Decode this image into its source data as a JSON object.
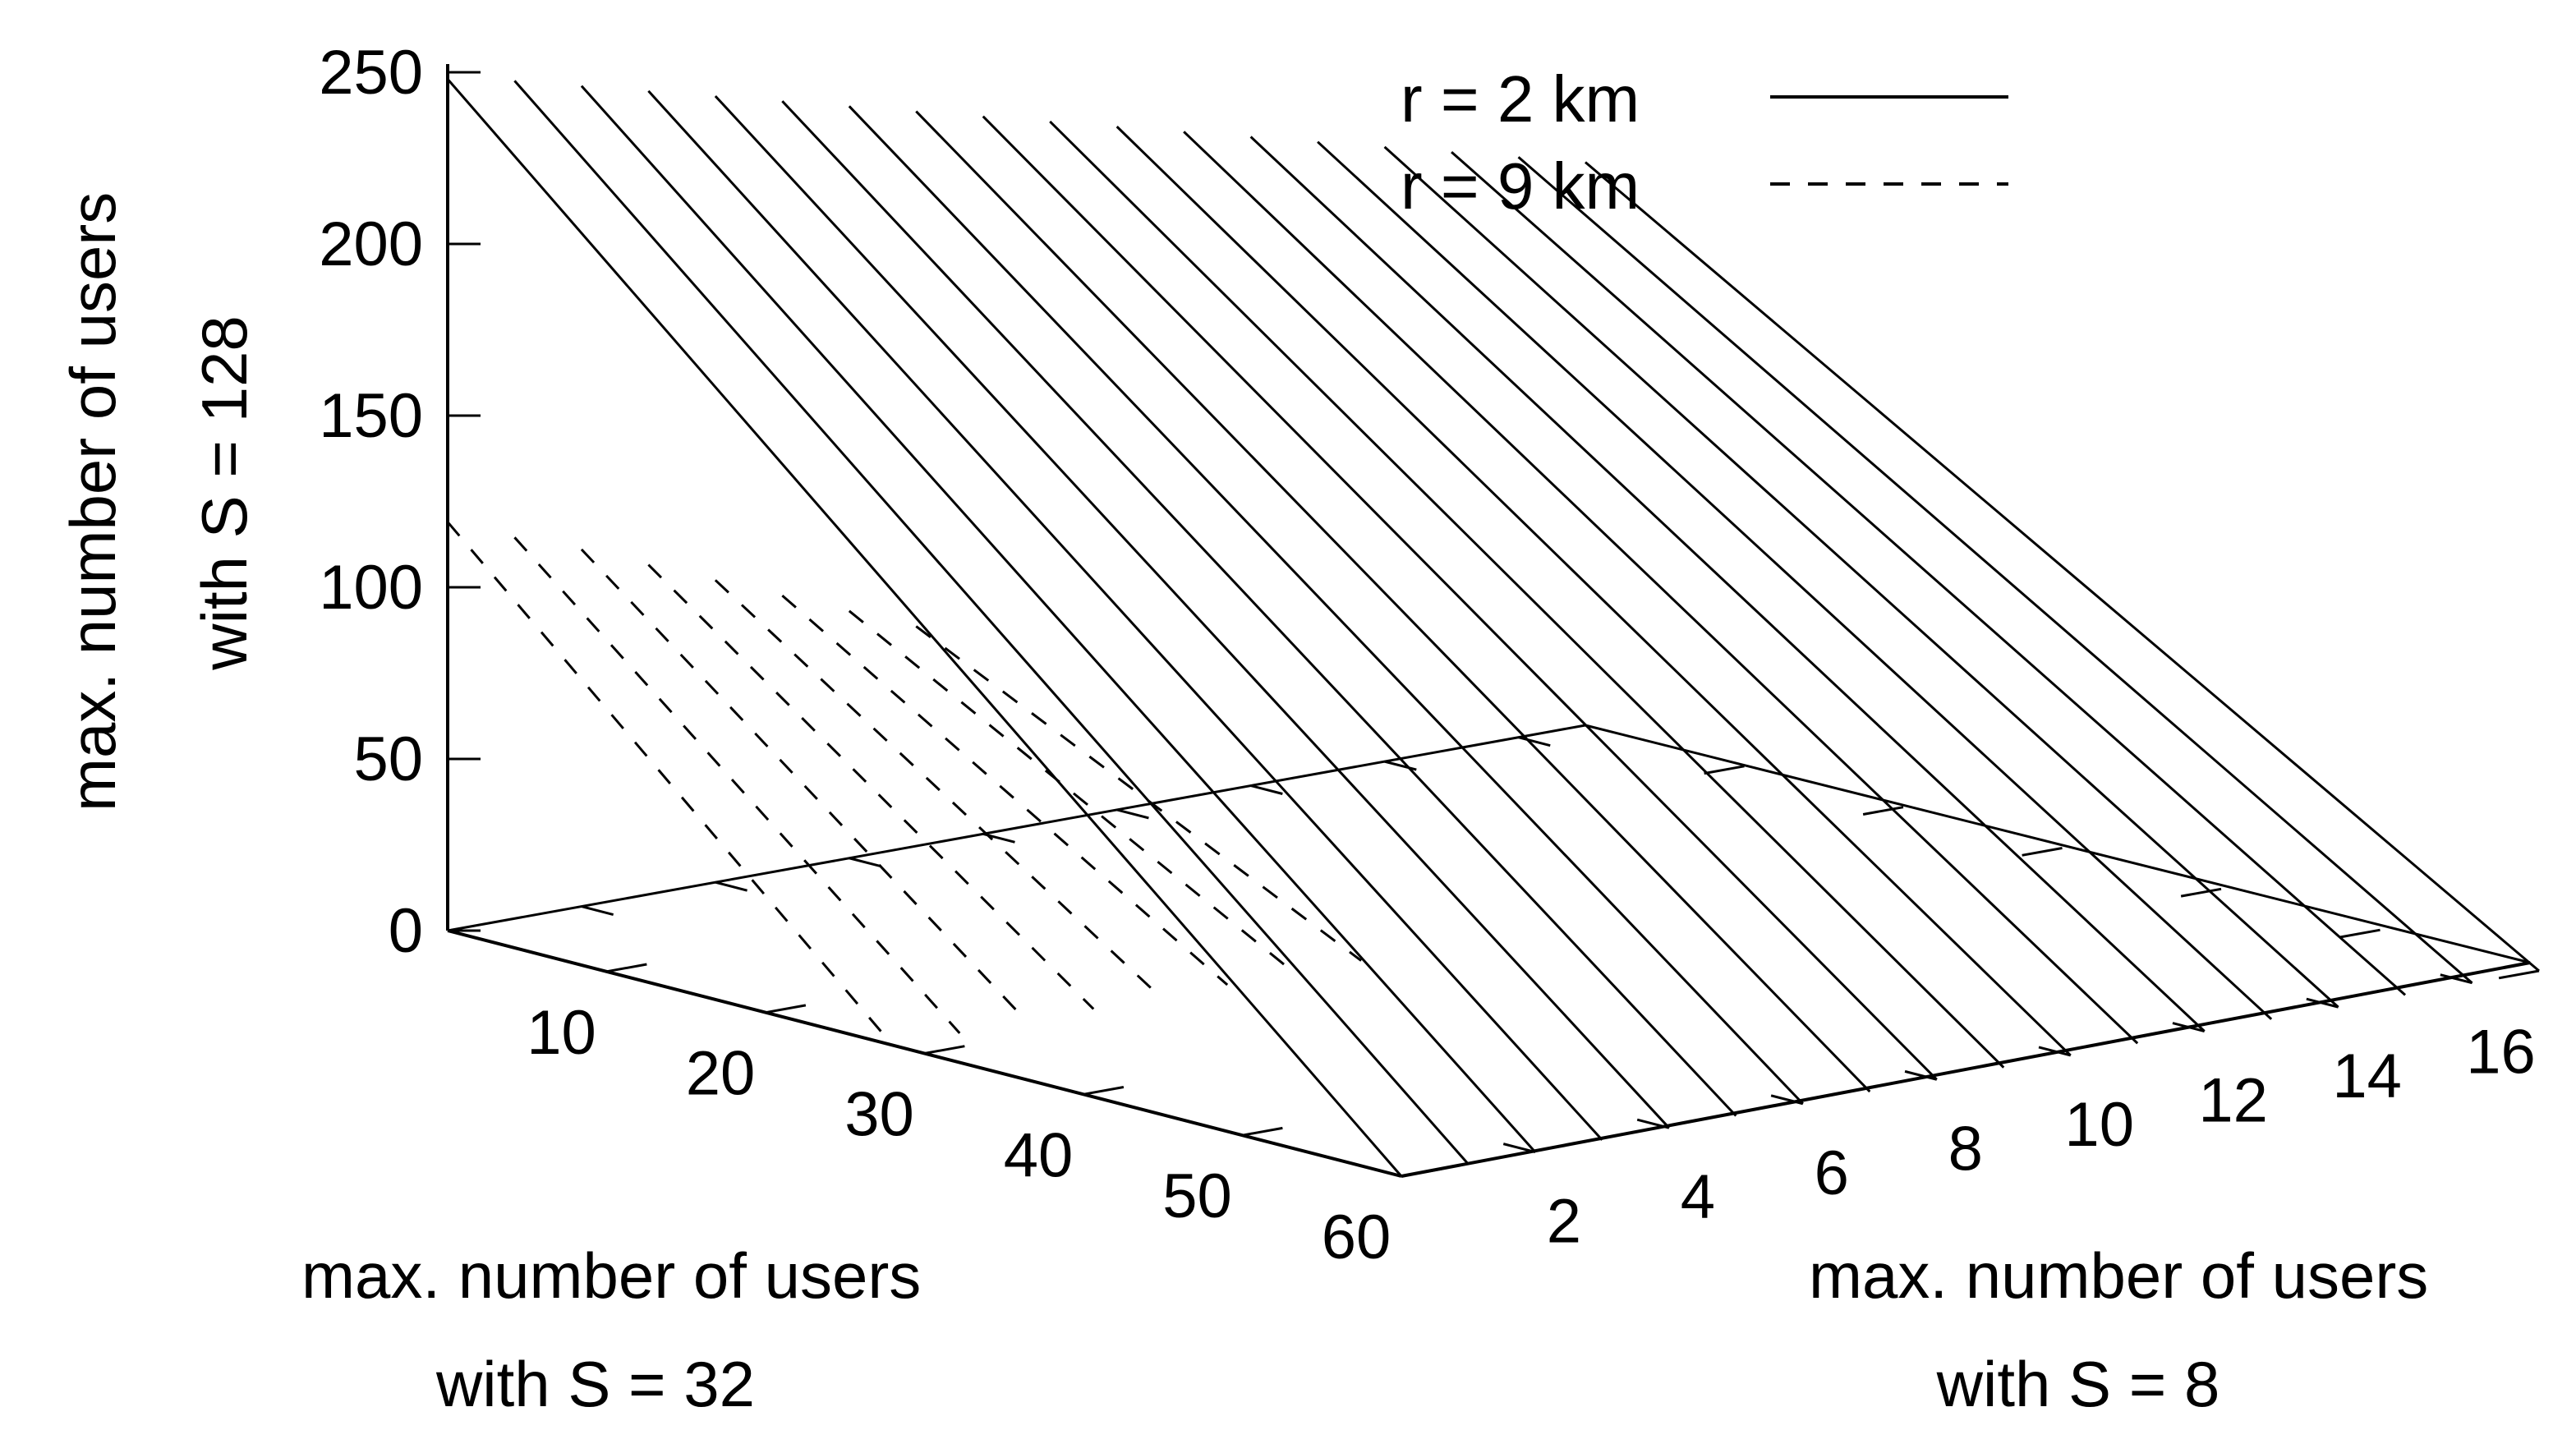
{
  "chart_data": {
    "type": "surface3d",
    "style": "3d wireframe (lines of constant S=8 value), no grid, legend top-right",
    "x_axis": {
      "label": [
        "max. number of users",
        "with S = 32"
      ],
      "range": [
        0,
        60
      ],
      "ticks": [
        10,
        20,
        30,
        40,
        50,
        60
      ]
    },
    "y_axis": {
      "label": [
        "max. number of users",
        "with S = 8"
      ],
      "range": [
        0,
        17
      ],
      "ticks": [
        2,
        4,
        6,
        8,
        10,
        12,
        14,
        16
      ]
    },
    "z_axis": {
      "label": [
        "max. number of users",
        "with S = 128"
      ],
      "range": [
        0,
        250
      ],
      "ticks": [
        0,
        50,
        100,
        150,
        200,
        250
      ]
    },
    "series": [
      {
        "name": "r = 2 km",
        "dash": "solid",
        "color": "#000000",
        "lines": [
          {
            "y": 0,
            "x_max": 60,
            "z_max": 248
          },
          {
            "y": 1,
            "x_max": 60,
            "z_max": 244
          },
          {
            "y": 2,
            "x_max": 60,
            "z_max": 239
          },
          {
            "y": 3,
            "x_max": 60,
            "z_max": 234
          },
          {
            "y": 4,
            "x_max": 60,
            "z_max": 229
          },
          {
            "y": 5,
            "x_max": 60,
            "z_max": 224
          },
          {
            "y": 6,
            "x_max": 60,
            "z_max": 219
          },
          {
            "y": 7,
            "x_max": 60,
            "z_max": 214
          },
          {
            "y": 8,
            "x_max": 60,
            "z_max": 209
          },
          {
            "y": 9,
            "x_max": 60,
            "z_max": 204
          },
          {
            "y": 10,
            "x_max": 60,
            "z_max": 199
          },
          {
            "y": 11,
            "x_max": 60,
            "z_max": 194
          },
          {
            "y": 12,
            "x_max": 60,
            "z_max": 189
          },
          {
            "y": 13,
            "x_max": 60,
            "z_max": 184
          },
          {
            "y": 14,
            "x_max": 60,
            "z_max": 179
          },
          {
            "y": 15,
            "x_max": 60,
            "z_max": 174
          },
          {
            "y": 16,
            "x_max": 60,
            "z_max": 169
          },
          {
            "y": 17,
            "x_max": 60,
            "z_max": 164
          }
        ]
      },
      {
        "name": "r = 9 km",
        "dash": "dashed",
        "color": "#000000",
        "lines": [
          {
            "y": 0,
            "x_max": 28,
            "z_max": 119
          },
          {
            "y": 1,
            "x_max": 28,
            "z_max": 111
          },
          {
            "y": 2,
            "x_max": 28,
            "z_max": 104
          },
          {
            "y": 3,
            "x_max": 28,
            "z_max": 96
          },
          {
            "y": 4,
            "x_max": 28,
            "z_max": 88
          },
          {
            "y": 5,
            "x_max": 28,
            "z_max": 80
          },
          {
            "y": 6,
            "x_max": 28,
            "z_max": 72
          },
          {
            "y": 7,
            "x_max": 28,
            "z_max": 64
          }
        ]
      }
    ]
  }
}
